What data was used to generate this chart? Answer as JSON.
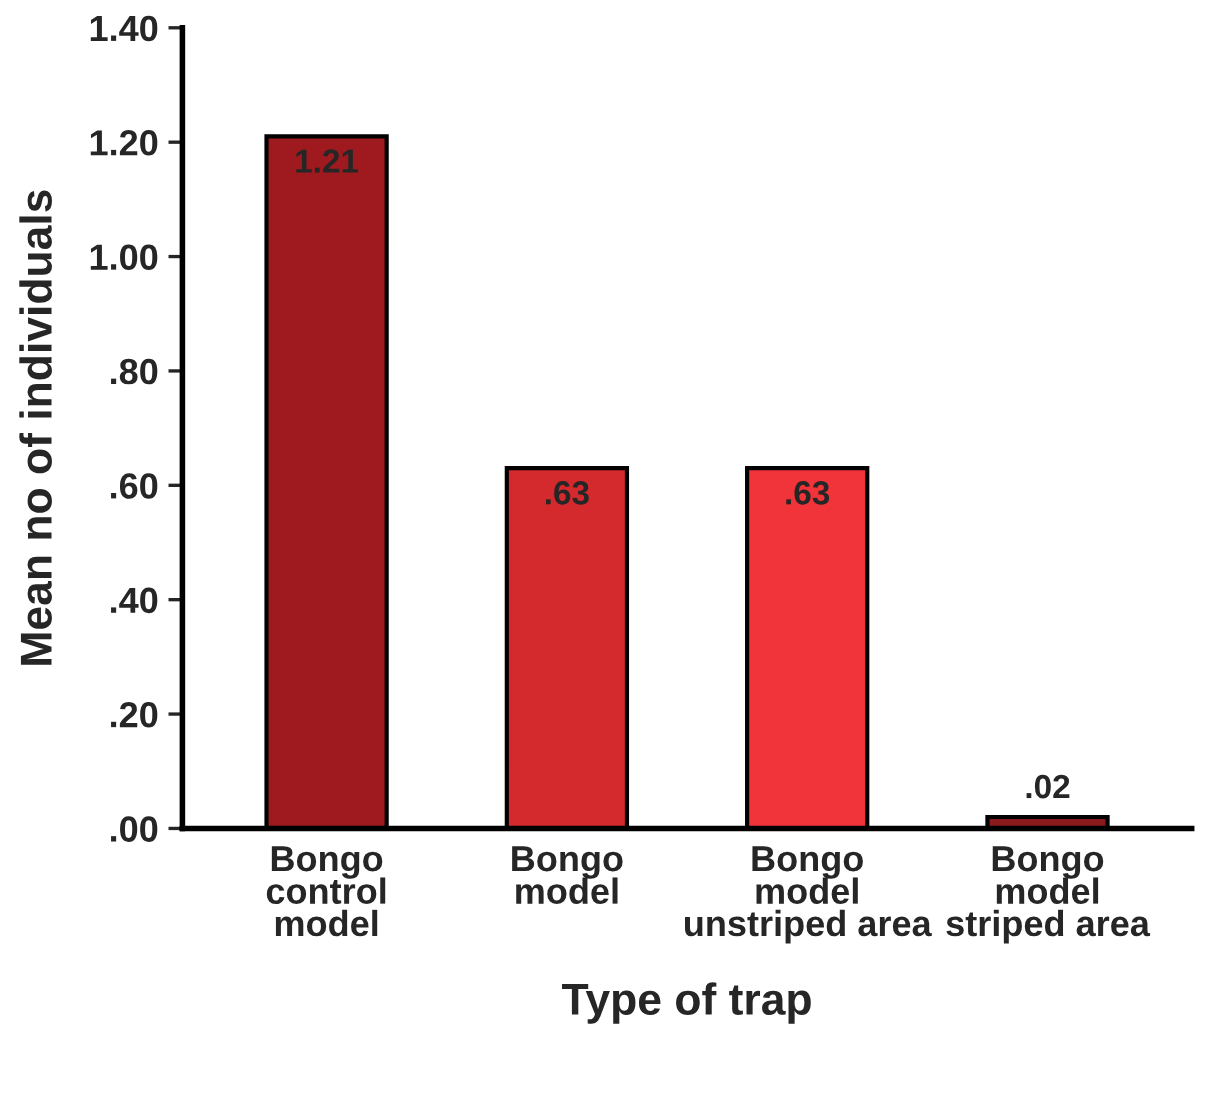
{
  "chart_data": {
    "type": "bar",
    "xlabel": "Type of trap",
    "ylabel": "Mean no of individuals",
    "categories": [
      "Bongo control model",
      "Bongo model",
      "Bongo model unstriped area",
      "Bongo model striped area"
    ],
    "values": [
      1.21,
      0.63,
      0.63,
      0.02
    ],
    "value_labels": [
      "1.21",
      ".63",
      ".63",
      ".02"
    ],
    "colors": [
      "#9e1a1e",
      "#d42a2e",
      "#f03439",
      "#8a1a1c"
    ],
    "ylim": [
      0,
      1.4
    ],
    "yticks": [
      {
        "value": 0,
        "label": ".00"
      },
      {
        "value": 0.2,
        "label": ".20"
      },
      {
        "value": 0.4,
        "label": ".40"
      },
      {
        "value": 0.6,
        "label": ".60"
      },
      {
        "value": 0.8,
        "label": ".80"
      },
      {
        "value": 1.0,
        "label": "1.00"
      },
      {
        "value": 1.2,
        "label": "1.20"
      },
      {
        "value": 1.4,
        "label": "1.40"
      }
    ],
    "grid": false
  }
}
